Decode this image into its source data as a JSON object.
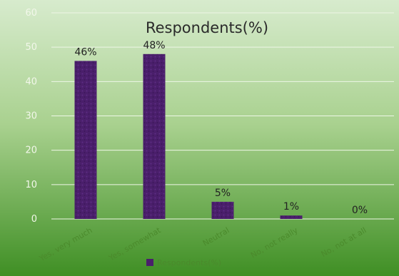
{
  "chart_data": {
    "type": "bar",
    "title": "Respondents(%)",
    "categories": [
      "Yes, very much",
      "Yes, somewhat",
      "Neutral",
      "No, not really",
      "No, not at all"
    ],
    "series": [
      {
        "name": "Respondents(%)",
        "values": [
          46,
          48,
          5,
          1,
          0
        ]
      }
    ],
    "data_labels": [
      "46%",
      "48%",
      "5%",
      "1%",
      "0%"
    ],
    "y_ticks": [
      0,
      10,
      20,
      30,
      40,
      50,
      60
    ],
    "ylim": [
      0,
      60
    ],
    "xlabel": "",
    "ylabel": "",
    "grid": true,
    "legend": "bottom",
    "colors": {
      "bar": "#4a1f6b",
      "bar_texture": "#5e2d86",
      "background_top": "#d7ebcd",
      "background_bottom": "#3f8f24",
      "gridline": "#eef6e6"
    }
  }
}
